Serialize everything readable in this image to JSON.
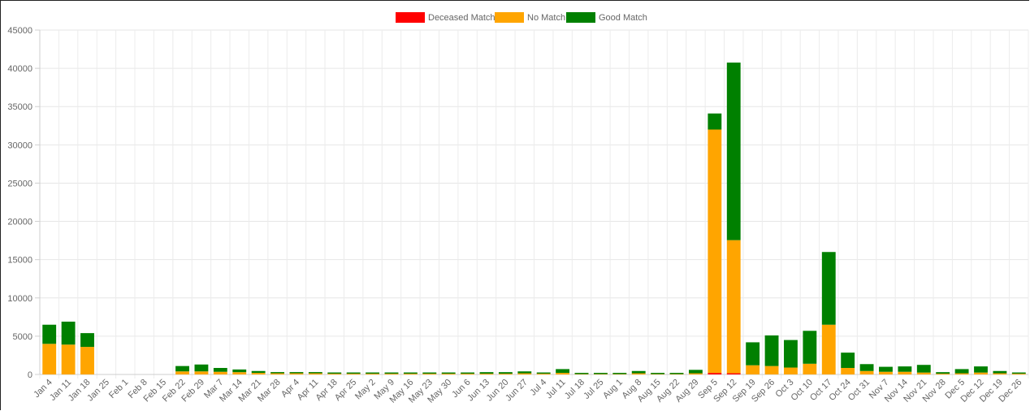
{
  "chart_data": {
    "type": "bar",
    "stacked": true,
    "legend_position": "top",
    "grid": true,
    "ylim": [
      0,
      45000
    ],
    "y_ticks": [
      0,
      5000,
      10000,
      15000,
      20000,
      25000,
      30000,
      35000,
      40000,
      45000
    ],
    "categories": [
      "Jan 4",
      "Jan 11",
      "Jan 18",
      "Jan 25",
      "Feb 1",
      "Feb 8",
      "Feb 15",
      "Feb 22",
      "Feb 29",
      "Mar 7",
      "Mar 14",
      "Mar 21",
      "Mar 28",
      "Apr 4",
      "Apr 11",
      "Apr 18",
      "Apr 25",
      "May 2",
      "May 9",
      "May 16",
      "May 23",
      "May 30",
      "Jun 6",
      "Jun 13",
      "Jun 20",
      "Jun 27",
      "Jul 4",
      "Jul 11",
      "Jul 18",
      "Jul 25",
      "Aug 1",
      "Aug 8",
      "Aug 15",
      "Aug 22",
      "Aug 29",
      "Sep 5",
      "Sep 12",
      "Sep 19",
      "Sep 26",
      "Oct 3",
      "Oct 10",
      "Oct 17",
      "Oct 24",
      "Oct 31",
      "Nov 7",
      "Nov 14",
      "Nov 21",
      "Nov 28",
      "Dec 5",
      "Dec 12",
      "Dec 19",
      "Dec 26"
    ],
    "series": [
      {
        "name": "Deceased Match",
        "color": "#ff0000",
        "values": [
          0,
          0,
          0,
          0,
          0,
          0,
          0,
          0,
          0,
          0,
          0,
          0,
          0,
          0,
          0,
          0,
          0,
          0,
          0,
          0,
          0,
          0,
          0,
          0,
          0,
          0,
          0,
          0,
          0,
          0,
          0,
          0,
          0,
          0,
          0,
          200,
          150,
          0,
          0,
          0,
          0,
          0,
          0,
          0,
          0,
          0,
          0,
          0,
          0,
          0,
          0,
          0
        ]
      },
      {
        "name": "No Match",
        "color": "#ffa500",
        "values": [
          4000,
          3900,
          3600,
          0,
          0,
          0,
          0,
          400,
          400,
          350,
          300,
          200,
          150,
          150,
          150,
          100,
          100,
          100,
          100,
          100,
          100,
          100,
          100,
          100,
          100,
          150,
          100,
          200,
          50,
          50,
          50,
          150,
          50,
          50,
          150,
          31800,
          17400,
          1200,
          1100,
          900,
          1400,
          6500,
          850,
          450,
          350,
          350,
          250,
          100,
          150,
          250,
          150,
          100
        ]
      },
      {
        "name": "Good Match",
        "color": "#008000",
        "values": [
          2500,
          3000,
          1800,
          0,
          0,
          0,
          0,
          700,
          900,
          500,
          350,
          250,
          150,
          150,
          150,
          100,
          100,
          100,
          150,
          100,
          100,
          100,
          100,
          200,
          200,
          250,
          150,
          500,
          50,
          50,
          50,
          300,
          50,
          100,
          450,
          2100,
          23200,
          3000,
          4000,
          3600,
          4300,
          9500,
          2000,
          900,
          650,
          700,
          1000,
          200,
          550,
          800,
          300,
          100
        ]
      }
    ]
  }
}
